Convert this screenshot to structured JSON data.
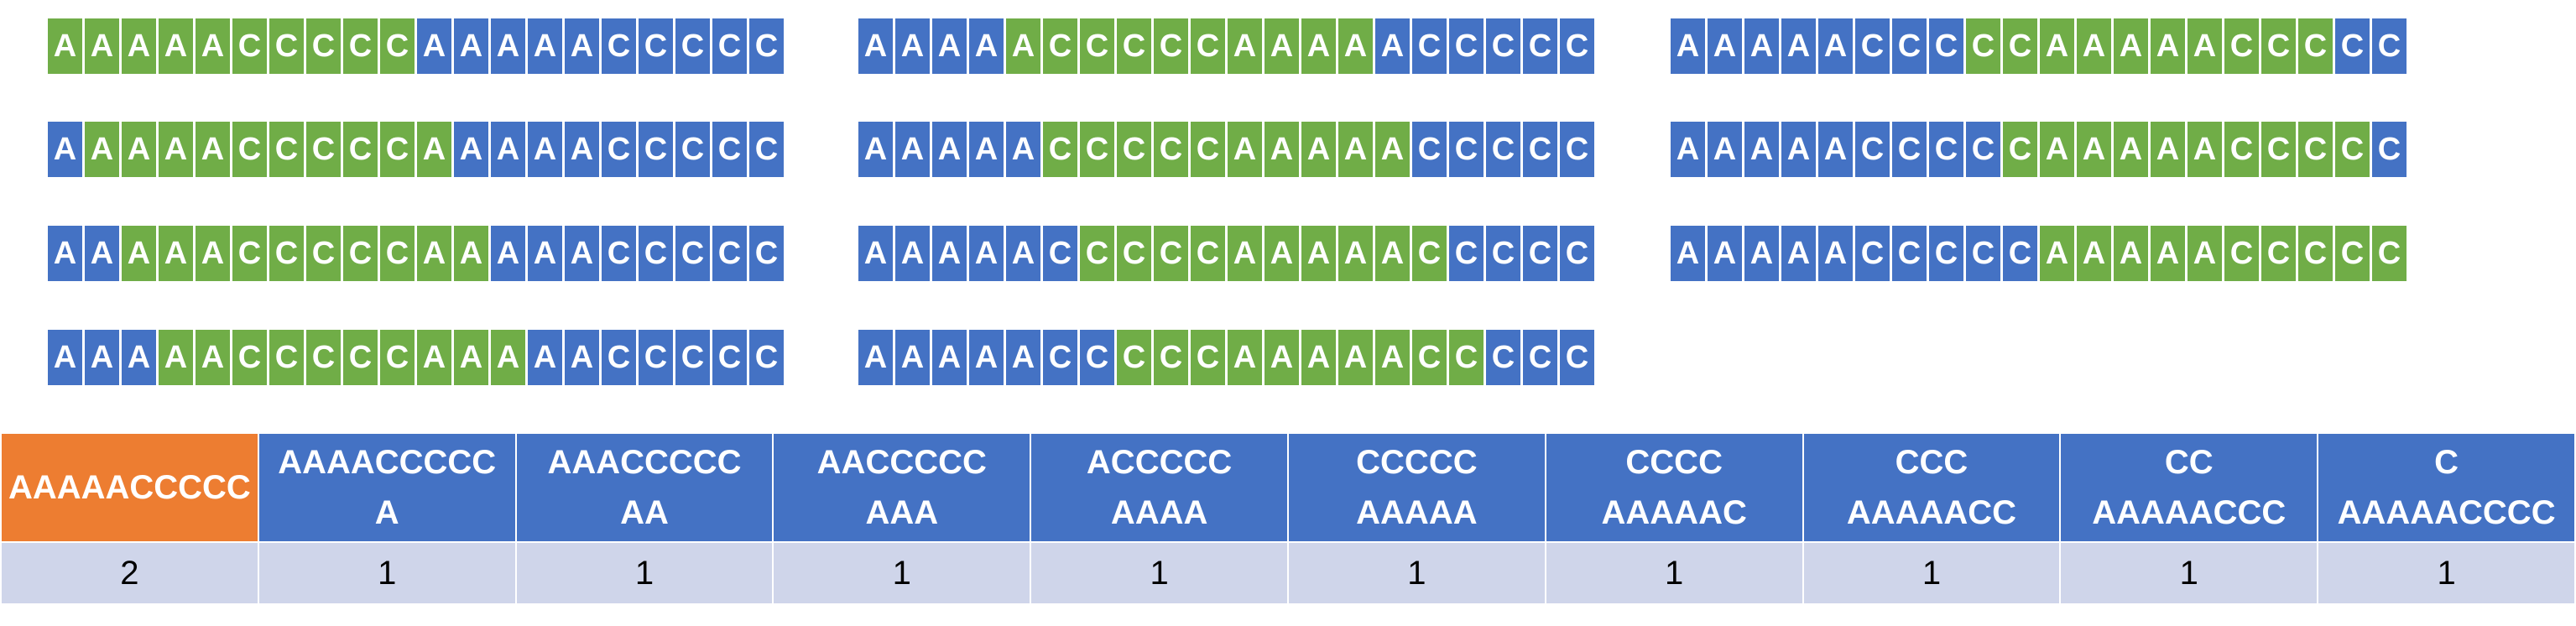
{
  "colors": {
    "window": "#70AD47",
    "base": "#4472C4",
    "highlight": "#ED7D31",
    "count_bg": "#CFD5EA"
  },
  "sequence": [
    "A",
    "A",
    "A",
    "A",
    "A",
    "C",
    "C",
    "C",
    "C",
    "C",
    "A",
    "A",
    "A",
    "A",
    "A",
    "C",
    "C",
    "C",
    "C",
    "C"
  ],
  "window_length": 10,
  "window_starts": [
    0,
    1,
    2,
    3,
    4,
    5,
    6,
    7,
    8,
    9,
    10
  ],
  "kmers": [
    {
      "lines": [
        "AAAAACCCCC"
      ],
      "count": "2",
      "highlight": true
    },
    {
      "lines": [
        "AAAACCCCC",
        "A"
      ],
      "count": "1",
      "highlight": false
    },
    {
      "lines": [
        "AAACCCCC",
        "AA"
      ],
      "count": "1",
      "highlight": false
    },
    {
      "lines": [
        "AACCCCC",
        "AAA"
      ],
      "count": "1",
      "highlight": false
    },
    {
      "lines": [
        "ACCCCC",
        "AAAA"
      ],
      "count": "1",
      "highlight": false
    },
    {
      "lines": [
        "CCCCC",
        "AAAAA"
      ],
      "count": "1",
      "highlight": false
    },
    {
      "lines": [
        "CCCC",
        "AAAAAC"
      ],
      "count": "1",
      "highlight": false
    },
    {
      "lines": [
        "CCC",
        "AAAAACC"
      ],
      "count": "1",
      "highlight": false
    },
    {
      "lines": [
        "CC",
        "AAAAACCC"
      ],
      "count": "1",
      "highlight": false
    },
    {
      "lines": [
        "C",
        "AAAAACCCC"
      ],
      "count": "1",
      "highlight": false
    }
  ]
}
